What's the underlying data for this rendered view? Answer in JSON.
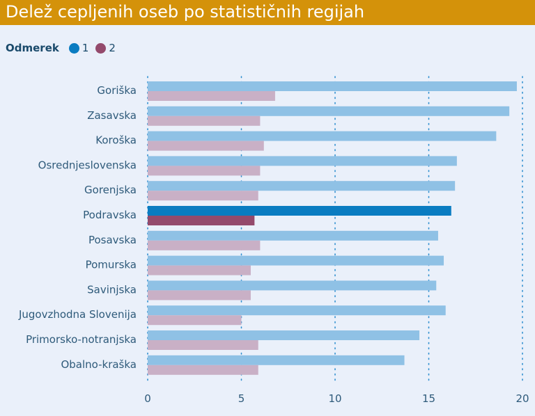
{
  "chart_data": {
    "type": "bar",
    "orientation": "horizontal",
    "title": "Delež cepljenih oseb po statističnih regijah",
    "legend_title": "Odmerek",
    "categories": [
      "Goriška",
      "Zasavska",
      "Koroška",
      "Osrednjeslovenska",
      "Gorenjska",
      "Podravska",
      "Posavska",
      "Pomurska",
      "Savinjska",
      "Jugovzhodna Slovenija",
      "Primorsko-notranjska",
      "Obalno-kraška"
    ],
    "highlight_category": "Podravska",
    "series": [
      {
        "name": "1",
        "values": [
          19.7,
          19.3,
          18.6,
          16.5,
          16.4,
          16.2,
          15.5,
          15.8,
          15.4,
          15.9,
          14.5,
          13.7
        ],
        "color": "#8fc1e5",
        "highlight_color": "#0a7cc1",
        "legend_color": "#0a7cc1"
      },
      {
        "name": "2",
        "values": [
          6.8,
          6.0,
          6.2,
          6.0,
          5.9,
          5.7,
          6.0,
          5.5,
          5.5,
          5.0,
          5.9,
          5.9
        ],
        "color": "#c9b0c6",
        "highlight_color": "#944a6c",
        "legend_color": "#944a6c"
      }
    ],
    "xlim": [
      0,
      20
    ],
    "xticks": [
      "0",
      "5",
      "10",
      "15",
      "20"
    ],
    "tick_values": [
      0,
      5,
      10,
      15,
      20
    ],
    "grid": true
  },
  "colors": {
    "title_background": "#d4920a",
    "text": "#2e5a7a",
    "grid": "#2f8fcf"
  }
}
